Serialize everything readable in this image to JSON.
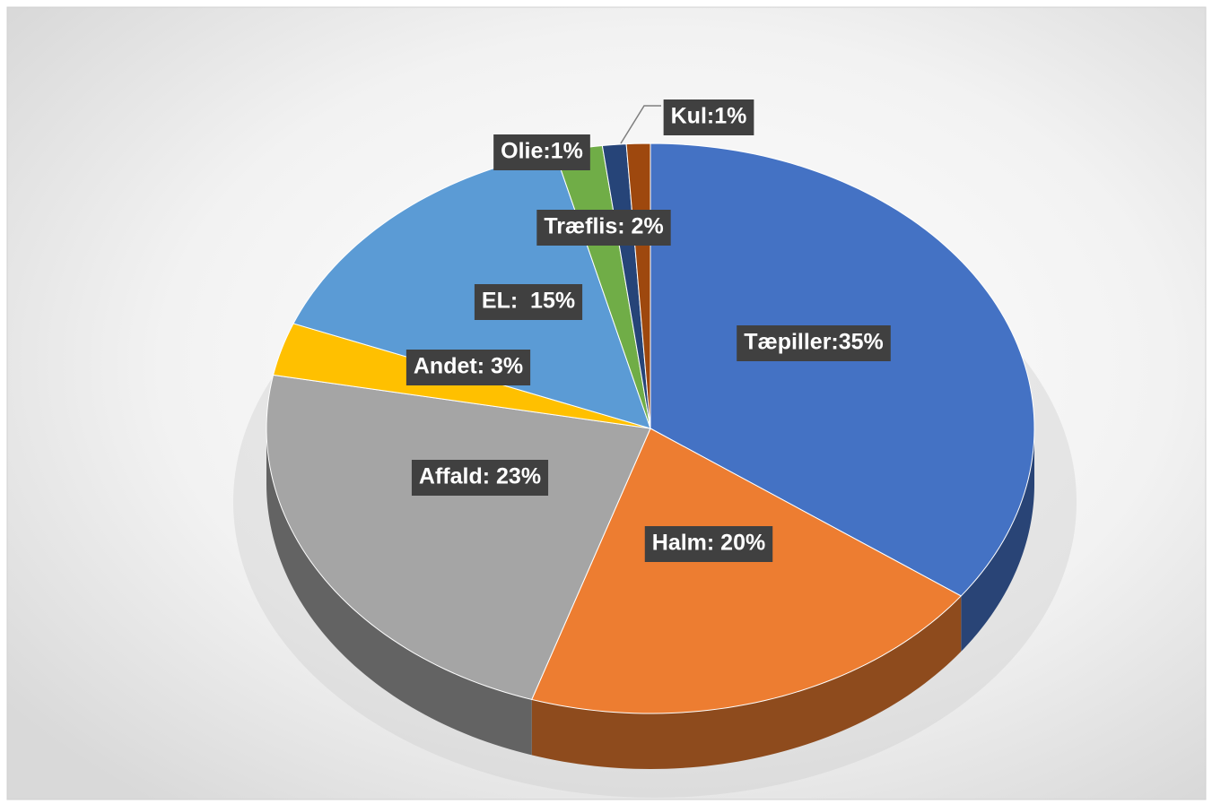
{
  "chart_data": {
    "type": "pie3d",
    "values": [
      35,
      20,
      23,
      3,
      15,
      2,
      1,
      1
    ],
    "value_labels": [
      "Tæpiller:35%",
      "Halm: 20%",
      "Affald: 23%",
      "Andet: 3%",
      "EL:  15%",
      "Træflis: 2%",
      "Olie:1%",
      "Kul:1%"
    ],
    "colors": [
      "#4472c4",
      "#ed7d31",
      "#a5a5a5",
      "#ffc000",
      "#5b9bd5",
      "#70ad47",
      "#264478",
      "#9e480e"
    ]
  }
}
